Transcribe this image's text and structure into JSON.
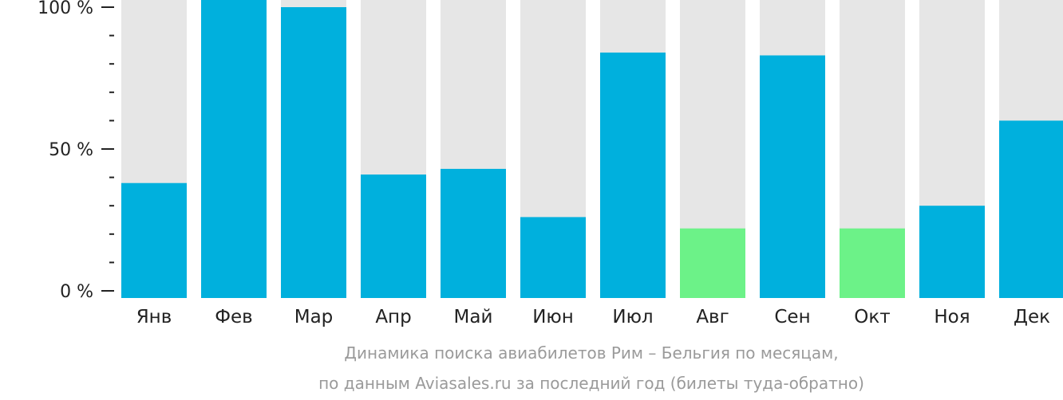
{
  "chart_data": {
    "type": "bar",
    "categories": [
      "Янв",
      "Фев",
      "Мар",
      "Апр",
      "Май",
      "Июн",
      "Июл",
      "Авг",
      "Сен",
      "Окт",
      "Ноя",
      "Дек"
    ],
    "values": [
      38,
      105,
      100,
      41,
      43,
      26,
      84,
      22,
      83,
      22,
      30,
      60
    ],
    "highlight": [
      false,
      false,
      false,
      false,
      false,
      false,
      false,
      true,
      false,
      true,
      false,
      false
    ],
    "ylim": [
      0,
      100
    ],
    "y_ticks": [
      {
        "value": 0,
        "label": "0 %"
      },
      {
        "value": 50,
        "label": "50 %"
      },
      {
        "value": 100,
        "label": "100 %"
      }
    ],
    "y_minor_step": 10,
    "grid": false,
    "legend": "none",
    "colors": {
      "bar": "#00b0dd",
      "highlight": "#6cf288",
      "track": "#e6e6e6",
      "text": "#222222",
      "caption": "#9a9a9a"
    },
    "caption": [
      "Динамика поиска авиабилетов Рим – Бельгия по месяцам,",
      "по данным Aviasales.ru за последний год (билеты туда-обратно)"
    ]
  }
}
